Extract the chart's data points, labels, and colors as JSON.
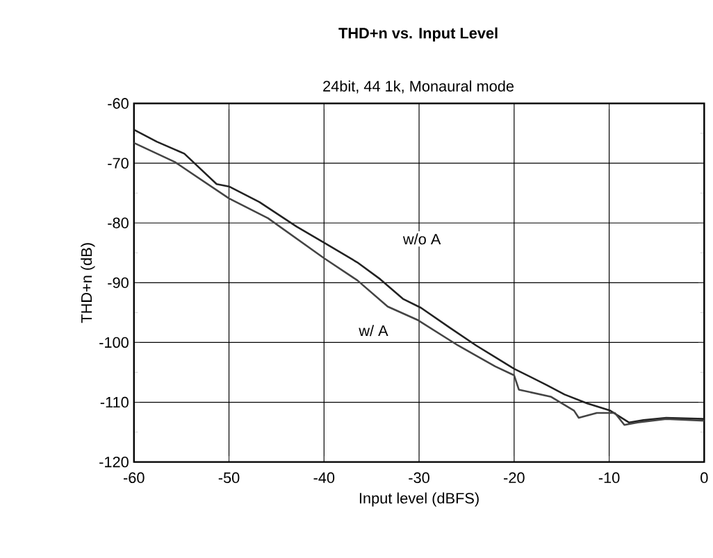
{
  "chart_data": {
    "type": "line",
    "title": "THD+n vs.  Input Level",
    "subtitle": "24bit, 44 1k, Monaural mode",
    "xlabel": "Input level (dBFS)",
    "ylabel": "THD+n (dB)",
    "xlim": [
      -60,
      0
    ],
    "xticks": [
      -60,
      -50,
      -40,
      -30,
      -20,
      -10,
      0
    ],
    "ylim": [
      -120,
      -60
    ],
    "yticks": [
      -120,
      -110,
      -100,
      -90,
      -80,
      -70,
      -60
    ],
    "grid": true,
    "legend": false,
    "marker": "none",
    "line_style": "solid",
    "series": [
      {
        "name": "w/o A",
        "color": "#222222",
        "x": [
          -60,
          -57.6,
          -54.7,
          -51.3,
          -50,
          -46.8,
          -42.9,
          -40,
          -36.5,
          -34.1,
          -31.7,
          -29.8,
          -26.8,
          -24,
          -20,
          -16.6,
          -14.7,
          -12.3,
          -9.9,
          -7.9,
          -6.4,
          -4,
          0
        ],
        "values": [
          -64.4,
          -66.4,
          -68.4,
          -73.5,
          -73.9,
          -76.5,
          -80.6,
          -83.3,
          -86.6,
          -89.4,
          -92.7,
          -94.2,
          -97.5,
          -100.5,
          -104.4,
          -107.1,
          -108.7,
          -110.2,
          -111.4,
          -113.4,
          -113,
          -112.6,
          -112.8
        ]
      },
      {
        "name": "w/ A",
        "color": "#444444",
        "x": [
          -60,
          -55.7,
          -50,
          -45.9,
          -40,
          -36.5,
          -33.3,
          -30.2,
          -25.9,
          -22,
          -20,
          -19.5,
          -16.1,
          -13.7,
          -13.2,
          -11.3,
          -9.4,
          -8.4,
          -7,
          -4,
          0
        ],
        "values": [
          -66.6,
          -69.8,
          -75.9,
          -79.2,
          -85.9,
          -89.6,
          -94,
          -96.2,
          -100.5,
          -104,
          -105.5,
          -107.9,
          -109.1,
          -111.4,
          -112.6,
          -111.8,
          -111.8,
          -113.8,
          -113.4,
          -112.8,
          -113.1
        ]
      }
    ]
  }
}
